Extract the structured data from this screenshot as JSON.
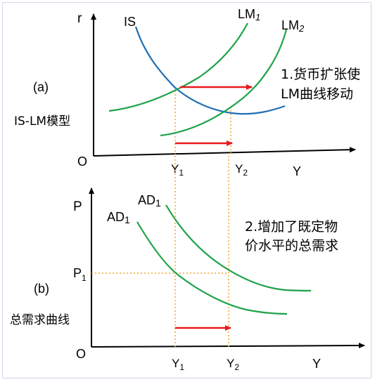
{
  "panel_a": {
    "label": "(a)",
    "caption": "IS-LM模型",
    "axis": {
      "y": "r",
      "x": "Y",
      "origin": "O"
    },
    "curves": {
      "is": "IS",
      "lm1": {
        "base": "LM",
        "sub": "1"
      },
      "lm2": {
        "base": "LM",
        "sub": "2"
      }
    },
    "ticks": [
      {
        "base": "Y",
        "sub": "1"
      },
      {
        "base": "Y",
        "sub": "2"
      }
    ],
    "note": [
      "1.货币扩张使",
      "LM曲线移动"
    ]
  },
  "panel_b": {
    "label": "(b)",
    "caption": "总需求曲线",
    "axis": {
      "y": "P",
      "x": "Y",
      "origin": "O"
    },
    "curves": {
      "ad1_left": {
        "base": "AD",
        "sub": "1"
      },
      "ad1_right": {
        "base": "AD",
        "sub": "1"
      }
    },
    "ticks": [
      {
        "base": "Y",
        "sub": "1"
      },
      {
        "base": "Y",
        "sub": "2"
      }
    ],
    "price": {
      "base": "P",
      "sub": "1"
    },
    "note": [
      "2.增加了既定物",
      "价水平的总需求"
    ]
  },
  "colors": {
    "is": "#1f6fb5",
    "lm": "#1fa34a",
    "ad": "#1fa34a",
    "arrow": "#e8191b",
    "guide": "#f0a830",
    "axis": "#000000"
  }
}
